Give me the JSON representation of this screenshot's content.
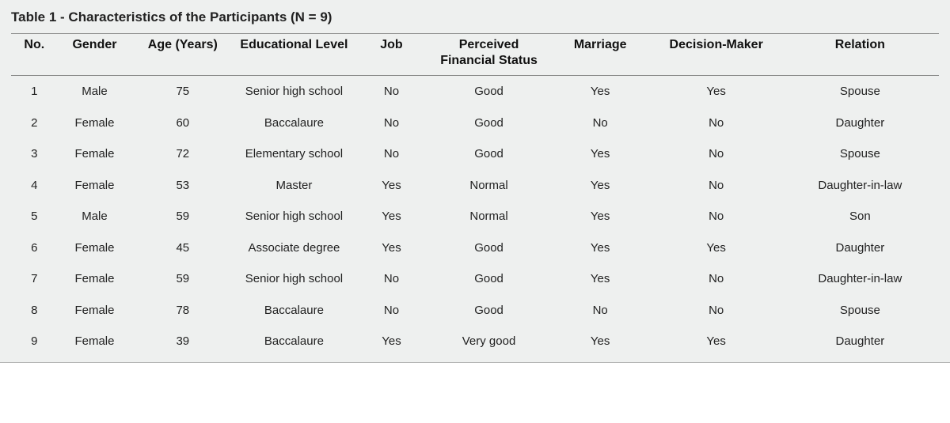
{
  "title": "Table 1 - Characteristics of the Participants (N = 9)",
  "style": {
    "background_color": "#eef0ef",
    "text_color": "#222222",
    "header_border_color": "#8c8d8c",
    "outer_bottom_border_color": "#b5b6b5",
    "title_fontsize": 17,
    "header_fontsize": 16,
    "cell_fontsize": 15,
    "font_family": "Arial, Helvetica, sans-serif",
    "column_widths_pct": [
      5,
      8,
      11,
      13,
      8,
      13,
      11,
      14,
      17
    ],
    "cell_align": "center"
  },
  "columns": [
    "No.",
    "Gender",
    "Age (Years)",
    "Educational Level",
    "Job",
    "Perceived Financial Status",
    "Marriage",
    "Decision-Maker",
    "Relation"
  ],
  "rows": [
    [
      "1",
      "Male",
      "75",
      "Senior high school",
      "No",
      "Good",
      "Yes",
      "Yes",
      "Spouse"
    ],
    [
      "2",
      "Female",
      "60",
      "Baccalaure",
      "No",
      "Good",
      "No",
      "No",
      "Daughter"
    ],
    [
      "3",
      "Female",
      "72",
      "Elementary school",
      "No",
      "Good",
      "Yes",
      "No",
      "Spouse"
    ],
    [
      "4",
      "Female",
      "53",
      "Master",
      "Yes",
      "Normal",
      "Yes",
      "No",
      "Daughter-in-law"
    ],
    [
      "5",
      "Male",
      "59",
      "Senior high school",
      "Yes",
      "Normal",
      "Yes",
      "No",
      "Son"
    ],
    [
      "6",
      "Female",
      "45",
      "Associate degree",
      "Yes",
      "Good",
      "Yes",
      "Yes",
      "Daughter"
    ],
    [
      "7",
      "Female",
      "59",
      "Senior high school",
      "No",
      "Good",
      "Yes",
      "No",
      "Daughter-in-law"
    ],
    [
      "8",
      "Female",
      "78",
      "Baccalaure",
      "No",
      "Good",
      "No",
      "No",
      "Spouse"
    ],
    [
      "9",
      "Female",
      "39",
      "Baccalaure",
      "Yes",
      "Very good",
      "Yes",
      "Yes",
      "Daughter"
    ]
  ]
}
